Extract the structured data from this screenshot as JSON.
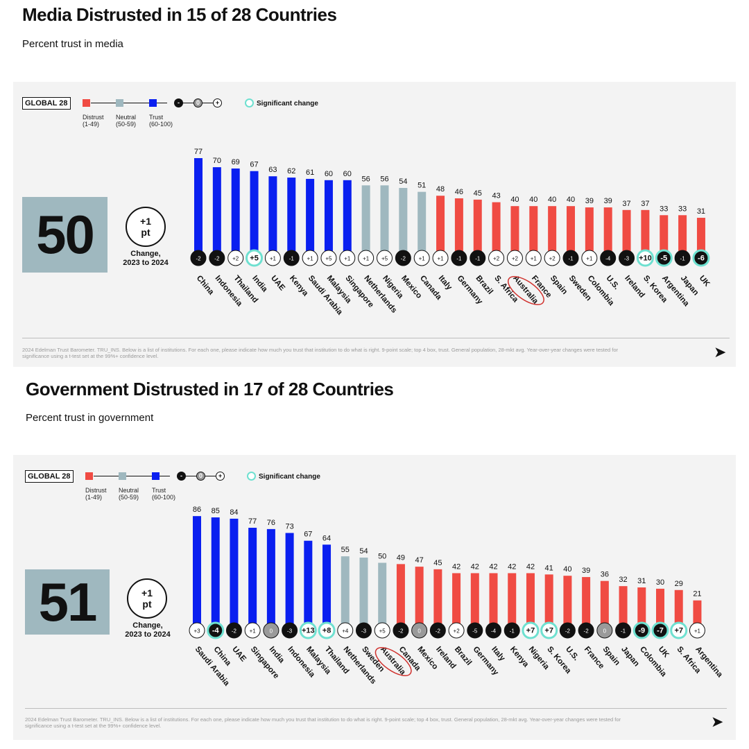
{
  "legend": {
    "global_label": "GLOBAL 28",
    "categories": [
      {
        "name": "Distrust",
        "range": "(1-49)",
        "color": "#f04b43"
      },
      {
        "name": "Neutral",
        "range": "(50-59)",
        "color": "#9fb8bf"
      },
      {
        "name": "Trust",
        "range": "(60-100)",
        "color": "#0a1ff0"
      }
    ],
    "change_symbols": [
      "-",
      "0",
      "+"
    ],
    "significant_label": "Significant change",
    "significant_color": "#6ee0d0"
  },
  "footnote": "2024 Edelman Trust Barometer. TRU_INS. Below is a list of institutions. For each one, please indicate how much you trust that institution to do what is right. 9-point scale; top 4 box, trust. General population, 28-mkt avg. Year-over-year changes were tested for significance using a t-test set at the 99%+ confidence level.",
  "charts": [
    {
      "title": "Media Distrusted in 15 of 28 Countries",
      "subtitle": "Percent trust in media",
      "global_value": "50",
      "global_change": "+1\npt",
      "change_label": "Change,\n2023 to 2024"
    },
    {
      "title": "Government Distrusted in 17 of 28 Countries",
      "subtitle": "Percent trust in government",
      "global_value": "51",
      "global_change": "+1\npt",
      "change_label": "Change,\n2023 to 2024"
    }
  ],
  "chart_data": [
    {
      "type": "bar",
      "title": "Media Distrusted in 15 of 28 Countries",
      "subtitle": "Percent trust in media",
      "ylim": [
        0,
        100
      ],
      "highlighted": "Australia",
      "categories": [
        "China",
        "Indonesia",
        "Thailand",
        "India",
        "UAE",
        "Kenya",
        "Saudi Arabia",
        "Malaysia",
        "Singapore",
        "Netherlands",
        "Nigeria",
        "Mexico",
        "Canada",
        "Italy",
        "Germany",
        "Brazil",
        "S. Africa",
        "Australia",
        "France",
        "Spain",
        "Sweden",
        "Colombia",
        "U.S.",
        "Ireland",
        "S. Korea",
        "Argentina",
        "Japan",
        "UK"
      ],
      "values": [
        77,
        70,
        69,
        67,
        63,
        62,
        61,
        60,
        60,
        56,
        56,
        54,
        51,
        48,
        46,
        45,
        43,
        40,
        40,
        40,
        40,
        39,
        39,
        37,
        37,
        33,
        33,
        31
      ],
      "changes": [
        "-2",
        "-2",
        "+2",
        "+5",
        "+1",
        "-1",
        "+1",
        "+5",
        "+1",
        "+1",
        "+5",
        "-2",
        "+1",
        "+1",
        "-1",
        "-1",
        "+2",
        "+2",
        "+1",
        "+2",
        "-1",
        "+1",
        "-4",
        "-3",
        "+10",
        "-5",
        "-1",
        "-6"
      ],
      "significant": [
        false,
        false,
        false,
        true,
        false,
        false,
        false,
        false,
        false,
        false,
        false,
        false,
        false,
        false,
        false,
        false,
        false,
        false,
        false,
        false,
        false,
        false,
        false,
        false,
        true,
        true,
        false,
        true
      ]
    },
    {
      "type": "bar",
      "title": "Government Distrusted in 17 of 28 Countries",
      "subtitle": "Percent trust in government",
      "ylim": [
        0,
        100
      ],
      "highlighted": "Australia",
      "categories": [
        "Saudi Arabia",
        "China",
        "UAE",
        "Singapore",
        "India",
        "Indonesia",
        "Malaysia",
        "Thailand",
        "Netherlands",
        "Sweden",
        "Australia",
        "Canada",
        "Mexico",
        "Ireland",
        "Brazil",
        "Germany",
        "Italy",
        "Kenya",
        "Nigeria",
        "S. Korea",
        "U.S.",
        "France",
        "Spain",
        "Japan",
        "Colombia",
        "UK",
        "S. Africa",
        "Argentina"
      ],
      "values": [
        86,
        85,
        84,
        77,
        76,
        73,
        67,
        64,
        55,
        54,
        50,
        49,
        47,
        45,
        42,
        42,
        42,
        42,
        42,
        41,
        40,
        39,
        36,
        32,
        31,
        30,
        29,
        21
      ],
      "changes": [
        "+3",
        "-4",
        "-2",
        "+1",
        "0",
        "-3",
        "+13",
        "+8",
        "+4",
        "-3",
        "+5",
        "-2",
        "0",
        "-2",
        "+2",
        "-5",
        "-4",
        "-1",
        "+7",
        "+7",
        "-2",
        "-2",
        "0",
        "-1",
        "-9",
        "-7",
        "+7",
        "+1"
      ],
      "significant": [
        false,
        true,
        false,
        false,
        false,
        false,
        true,
        true,
        false,
        false,
        false,
        false,
        false,
        false,
        false,
        false,
        false,
        false,
        true,
        true,
        false,
        false,
        false,
        false,
        true,
        true,
        true,
        false
      ]
    }
  ]
}
